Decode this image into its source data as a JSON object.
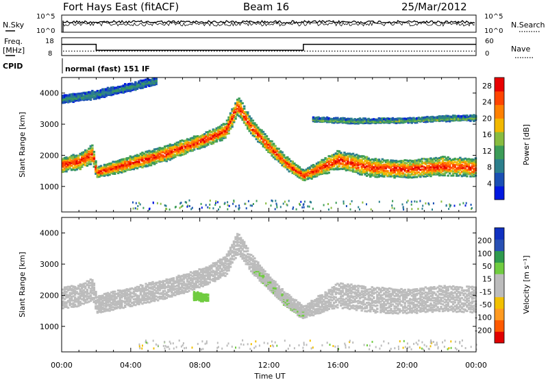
{
  "header": {
    "station": "Fort Hays East (fitACF)",
    "beam": "Beam 16",
    "date": "25/Mar/2012"
  },
  "noise_panel": {
    "left_label": "N.Sky",
    "right_label": "N.Search",
    "left_ticks": [
      "10^5",
      "10^0"
    ],
    "right_ticks": [
      "10^5",
      "10^0"
    ]
  },
  "freq_panel": {
    "left_label_line1": "Freq.",
    "left_label_line2": "[MHz]",
    "right_label": "Nave",
    "left_ticks": [
      "18",
      "8"
    ],
    "right_ticks": [
      "60",
      "0"
    ],
    "freq_steps": [
      {
        "start_hour": 0.0,
        "end_hour": 2.0,
        "mhz": 14.3
      },
      {
        "start_hour": 2.0,
        "end_hour": 14.0,
        "mhz": 11.0
      },
      {
        "start_hour": 14.0,
        "end_hour": 24.0,
        "mhz": 14.3
      }
    ],
    "nave_level": 15
  },
  "cpid": {
    "label": "CPID",
    "value": "normal (fast) 151 IF"
  },
  "time_axis": {
    "label": "Time UT",
    "ticks": [
      "00:00",
      "04:00",
      "08:00",
      "12:00",
      "16:00",
      "20:00",
      "00:00"
    ],
    "range_hours": [
      0,
      24
    ]
  },
  "colors": {
    "power_scale": [
      "#0018e0",
      "#1a4fb4",
      "#2c7f8c",
      "#3c9c58",
      "#88bc40",
      "#f2b800",
      "#ff8000",
      "#ff4400",
      "#e80000"
    ],
    "velocity_scale": [
      "#e00000",
      "#ff5a00",
      "#ff9a20",
      "#f2c000",
      "#bcbcbc",
      "#bcbcbc",
      "#70cc40",
      "#2e9a4e",
      "#2850b4",
      "#1030c0"
    ]
  },
  "chart_data": [
    {
      "type": "heatmap",
      "title": "",
      "xlabel": "Time UT",
      "ylabel": "Slant Range [km]",
      "xlim": [
        0,
        24
      ],
      "ylim": [
        180,
        4500
      ],
      "yticks": [
        "1000",
        "2000",
        "3000",
        "4000"
      ],
      "colorbar": {
        "label": "Power [dB]",
        "ticks": [
          "4",
          "8",
          "12",
          "16",
          "20",
          "24",
          "28"
        ],
        "range": [
          0,
          30
        ]
      },
      "traces": [
        {
          "x": [
            0.0,
            1.0,
            1.8,
            2.0,
            4.0,
            6.0,
            7.5,
            8.5,
            9.5,
            10.2,
            11.0,
            12.0,
            13.0,
            14.0,
            16.0,
            18.0,
            20.0,
            22.0,
            24.0
          ],
          "y": [
            1700,
            1800,
            2050,
            1450,
            1750,
            2050,
            2350,
            2550,
            2800,
            3600,
            2900,
            2300,
            1750,
            1350,
            1850,
            1600,
            1550,
            1650,
            1600
          ],
          "half_width_km": [
            250,
            250,
            300,
            180,
            220,
            250,
            220,
            230,
            250,
            300,
            250,
            230,
            200,
            180,
            300,
            300,
            280,
            300,
            300
          ],
          "power_db": 26
        },
        {
          "x": [
            0.0,
            2.0,
            4.0,
            5.5
          ],
          "y": [
            3800,
            3950,
            4200,
            4400
          ],
          "half_width_km": [
            120,
            120,
            120,
            120
          ],
          "power_db": 10
        },
        {
          "x": [
            14.5,
            17.0,
            20.0,
            22.0,
            24.0
          ],
          "y": [
            3150,
            3100,
            3120,
            3180,
            3200
          ],
          "half_width_km": [
            60,
            60,
            60,
            70,
            80
          ],
          "power_db": 14
        }
      ]
    },
    {
      "type": "heatmap",
      "title": "",
      "xlabel": "Time UT",
      "ylabel": "Slant Range [km]",
      "xlim": [
        0,
        24
      ],
      "ylim": [
        180,
        4500
      ],
      "yticks": [
        "1000",
        "2000",
        "3000",
        "4000"
      ],
      "colorbar": {
        "label": "Velocity [m s⁻¹]",
        "ticks": [
          "-200",
          "-100",
          "-50",
          "-15",
          "15",
          "50",
          "100",
          "200"
        ],
        "range": [
          -250,
          250
        ]
      },
      "traces": [
        {
          "x": [
            0.0,
            1.0,
            1.8,
            2.0,
            4.0,
            6.0,
            7.5,
            8.5,
            9.5,
            10.2,
            11.0,
            12.0,
            13.0,
            14.0,
            16.0,
            18.0,
            20.0,
            22.0,
            24.0
          ],
          "y": [
            1900,
            2000,
            2200,
            1700,
            1950,
            2200,
            2450,
            2650,
            2950,
            3700,
            3000,
            2400,
            1850,
            1450,
            2000,
            1850,
            1800,
            1900,
            1850
          ],
          "half_width_km": [
            350,
            350,
            350,
            280,
            300,
            320,
            300,
            300,
            320,
            350,
            280,
            230,
            200,
            200,
            400,
            420,
            400,
            420,
            420
          ],
          "velocity_ms": 0
        },
        {
          "x": [
            11.0,
            12.0,
            13.0,
            14.0
          ],
          "y": [
            2900,
            2300,
            1750,
            1350
          ],
          "half_width_km": [
            120,
            120,
            120,
            120
          ],
          "velocity_ms": 40
        },
        {
          "x": [
            7.6,
            8.0,
            8.5
          ],
          "y": [
            1980,
            1950,
            1900
          ],
          "half_width_km": [
            120,
            120,
            120
          ],
          "velocity_ms": 80
        }
      ]
    }
  ]
}
